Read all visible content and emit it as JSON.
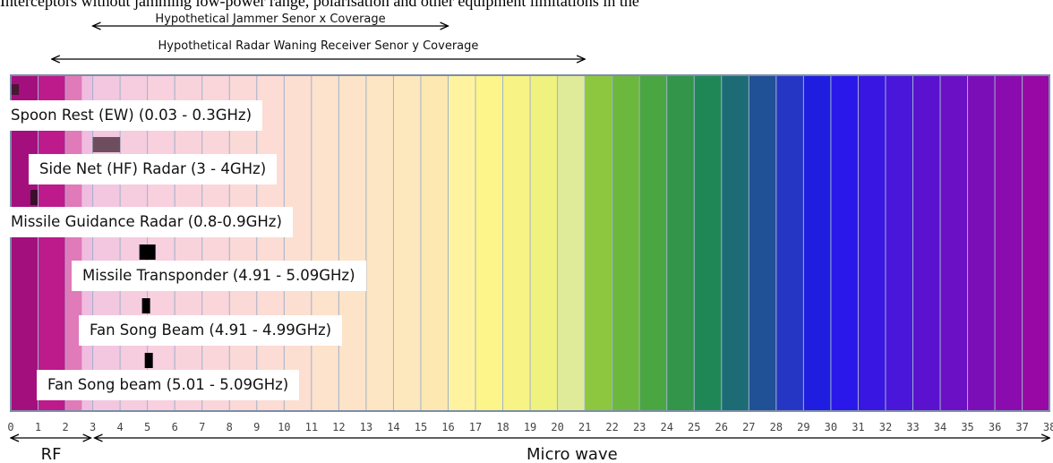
{
  "top_text": "Interceptors without jamming low-power range, polarisation and other equipment limitations in the",
  "coverage": {
    "jammer_label": "Hypothetical Jammer Senor  x Coverage",
    "jammer_range": [
      3,
      16
    ],
    "rwr_label": "Hypothetical Radar Waning Receiver Senor  y Coverage",
    "rwr_range": [
      1.5,
      21
    ]
  },
  "emitters": [
    {
      "label": "Spoon Rest (EW) (0.03 - 0.3GHz)",
      "range": [
        0.03,
        0.3
      ],
      "color": "#4a1636"
    },
    {
      "label": "Side Net (HF) Radar (3 - 4GHz)",
      "range": [
        3,
        4
      ],
      "color": "#6e4e5e"
    },
    {
      "label": "Missile Guidance Radar (0.8-0.9GHz)",
      "range": [
        0.8,
        0.9
      ],
      "color": "#3a0f2a"
    },
    {
      "label": "Missile Transponder  (4.91 - 5.09GHz)",
      "range": [
        4.91,
        5.09
      ],
      "color": "#000000"
    },
    {
      "label": "Fan Song Beam (4.91 - 4.99GHz)",
      "range": [
        4.91,
        4.99
      ],
      "color": "#000000"
    },
    {
      "label": "Fan Song  beam (5.01 - 5.09GHz)",
      "range": [
        5.01,
        5.09
      ],
      "color": "#000000"
    }
  ],
  "axis": {
    "ticks": [
      "0",
      "1",
      "2",
      "3",
      "4",
      "5",
      "6",
      "7",
      "8",
      "9",
      "10",
      "11",
      "12",
      "13",
      "14",
      "15",
      "16",
      "17",
      "18",
      "19",
      "20",
      "21",
      "22",
      "23",
      "24",
      "25",
      "26",
      "27",
      "28",
      "29",
      "30",
      "31",
      "32",
      "33",
      "34",
      "35",
      "36",
      "37",
      "38"
    ]
  },
  "bands": [
    {
      "label": "RF",
      "range": [
        0,
        3
      ]
    },
    {
      "label": "Micro wave",
      "range": [
        3,
        38
      ]
    }
  ]
}
